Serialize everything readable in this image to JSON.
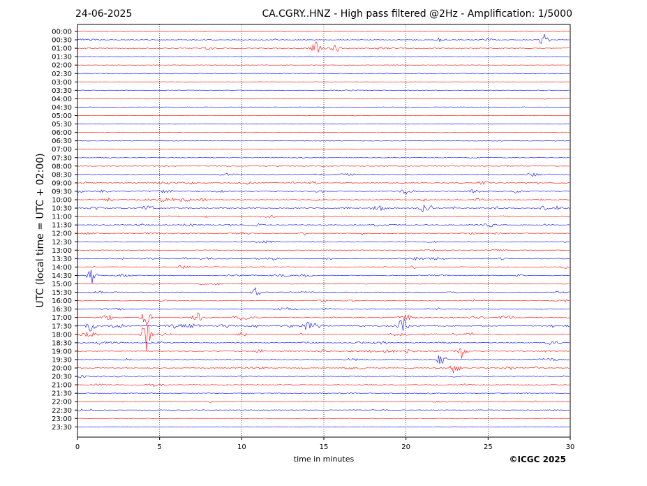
{
  "header": {
    "date": "24-06-2025",
    "title": "CA.CGRY..HNZ - High pass filtered @2Hz - Amplification: 1/5000"
  },
  "footer": {
    "copyright": "©ICGC 2025"
  },
  "colors": {
    "odd_trace": "#ff0000",
    "even_trace": "#0000ff",
    "grid": "#000000"
  },
  "chart_data": {
    "type": "line",
    "title": "CA.CGRY..HNZ - High pass filtered @2Hz - Amplification: 1/5000",
    "xlabel": "time in minutes",
    "ylabel": "UTC (local time = UTC + 02:00)",
    "xlim": [
      0,
      30
    ],
    "x_ticks": [
      0,
      5,
      10,
      15,
      20,
      25,
      30
    ],
    "vertical_gridlines_at": [
      5,
      10,
      15,
      20,
      25
    ],
    "grid": true,
    "trace_colors": [
      "red",
      "blue"
    ],
    "categories": [
      "00:00",
      "00:30",
      "01:00",
      "01:30",
      "02:00",
      "02:30",
      "03:00",
      "03:30",
      "04:00",
      "04:30",
      "05:00",
      "05:30",
      "06:00",
      "06:30",
      "07:00",
      "07:30",
      "08:00",
      "08:30",
      "09:00",
      "09:30",
      "10:00",
      "10:30",
      "11:00",
      "11:30",
      "12:00",
      "12:30",
      "13:00",
      "13:30",
      "14:00",
      "14:30",
      "15:00",
      "15:30",
      "16:00",
      "16:30",
      "17:00",
      "17:30",
      "18:00",
      "18:30",
      "19:00",
      "19:30",
      "20:00",
      "20:30",
      "21:00",
      "21:30",
      "22:00",
      "22:30",
      "23:00",
      "23:30"
    ],
    "activity_level": [
      0.1,
      0.5,
      0.5,
      0.15,
      0.05,
      0.05,
      0.05,
      0.15,
      0.1,
      0.1,
      0.05,
      0.05,
      0.1,
      0.15,
      0.15,
      0.2,
      0.3,
      0.4,
      0.6,
      0.7,
      0.7,
      0.8,
      0.5,
      0.6,
      0.5,
      0.3,
      0.3,
      0.6,
      0.6,
      0.5,
      0.3,
      0.4,
      0.4,
      0.5,
      0.8,
      0.9,
      0.7,
      0.6,
      0.6,
      0.4,
      0.5,
      0.5,
      0.4,
      0.2,
      0.4,
      0.3,
      0.05,
      0.05
    ],
    "events": [
      {
        "row": "00:30",
        "x": 28.4,
        "amp": 1.0
      },
      {
        "row": "01:00",
        "x": 14.5,
        "amp": 1.0
      },
      {
        "row": "01:00",
        "x": 15.7,
        "amp": 0.8
      },
      {
        "row": "10:30",
        "x": 4.3,
        "amp": 0.8
      },
      {
        "row": "14:30",
        "x": 0.9,
        "amp": 1.6
      },
      {
        "row": "15:30",
        "x": 10.9,
        "amp": 0.8
      },
      {
        "row": "17:00",
        "x": 4.2,
        "amp": 1.2
      },
      {
        "row": "17:00",
        "x": 7.3,
        "amp": 0.8
      },
      {
        "row": "17:30",
        "x": 0.8,
        "amp": 0.9
      },
      {
        "row": "17:30",
        "x": 19.8,
        "amp": 1.6
      },
      {
        "row": "18:00",
        "x": 4.2,
        "amp": 2.8
      },
      {
        "row": "19:00",
        "x": 23.4,
        "amp": 1.0
      },
      {
        "row": "19:30",
        "x": 22.2,
        "amp": 1.2
      },
      {
        "row": "20:00",
        "x": 23.0,
        "amp": 0.8
      }
    ]
  }
}
